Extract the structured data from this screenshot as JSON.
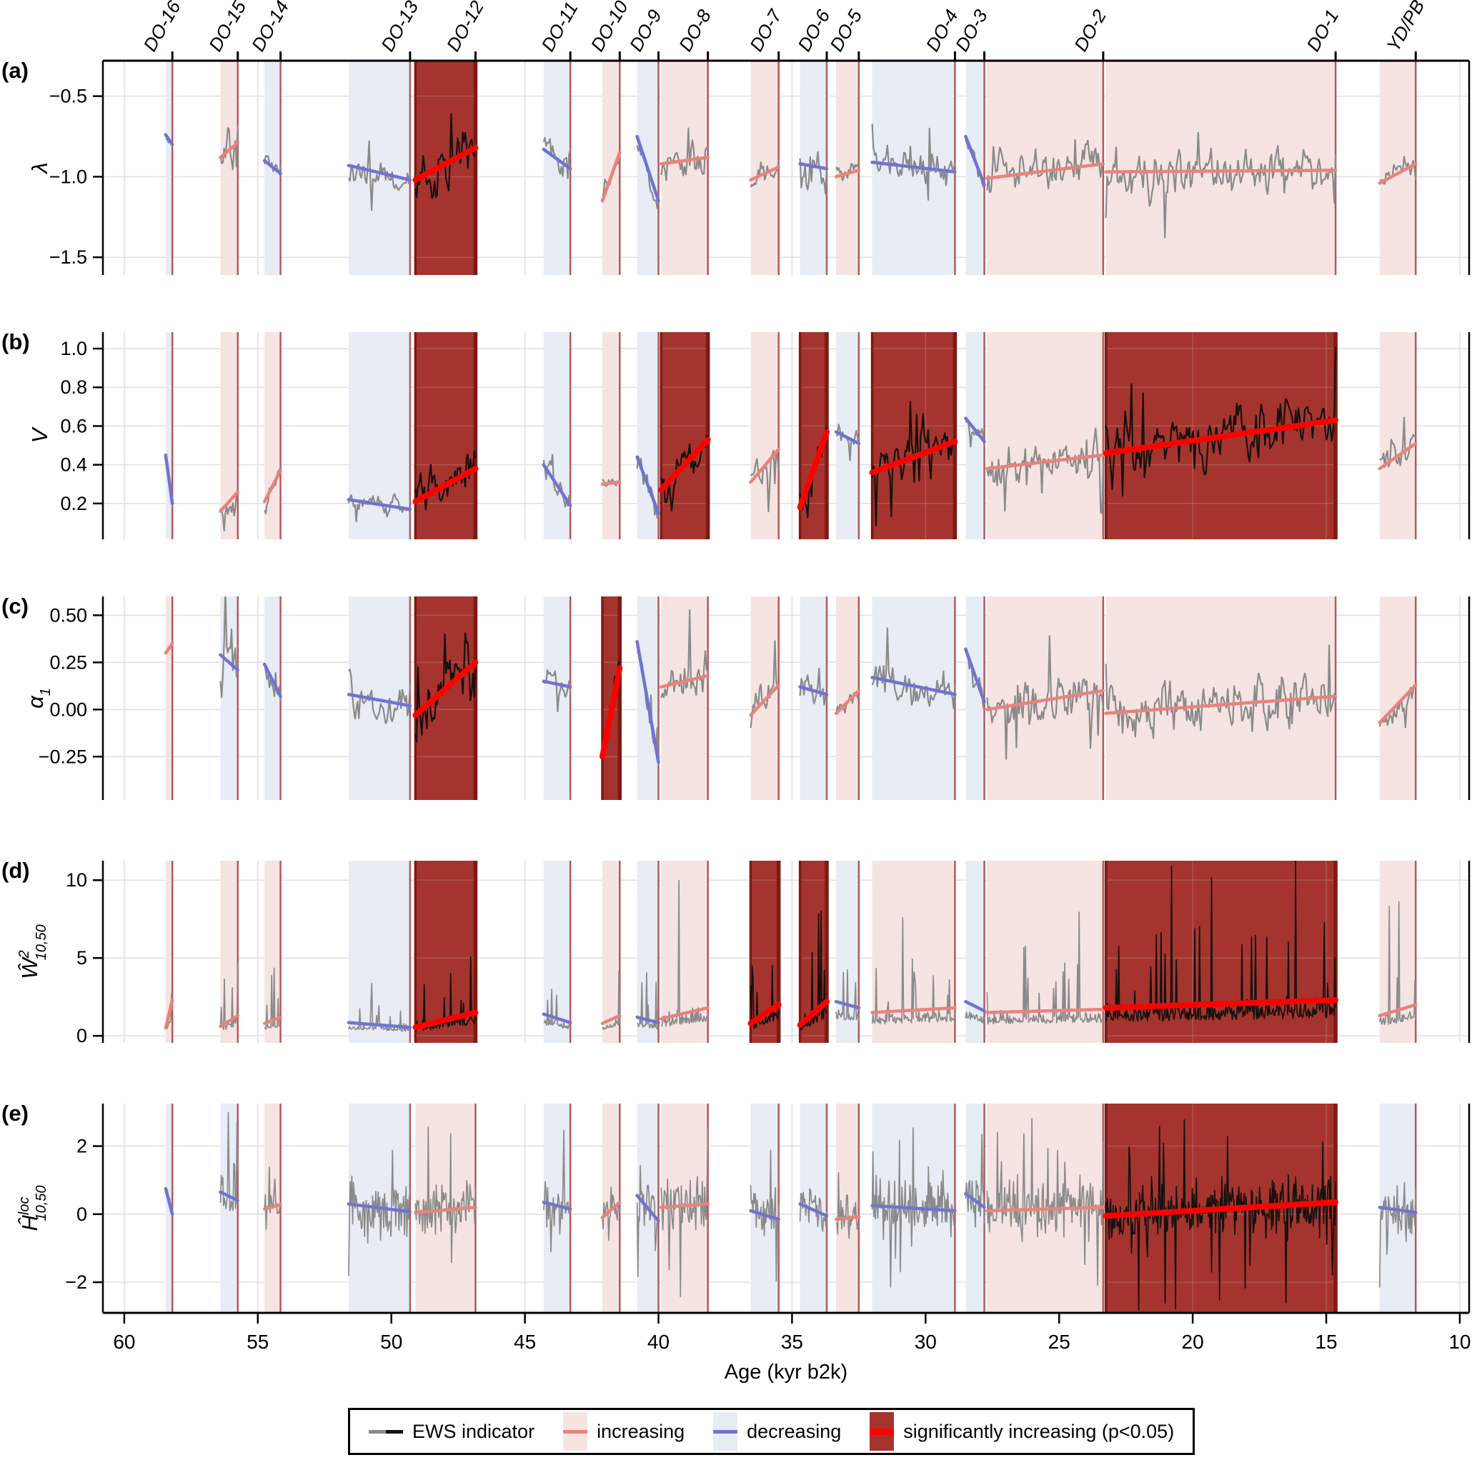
{
  "chart_data": {
    "type": "line",
    "title": "",
    "xlabel": "Age (kyr b2k)",
    "x_range": [
      60.8,
      9.65
    ],
    "x_ticks": [
      60,
      55,
      50,
      45,
      40,
      35,
      30,
      25,
      20,
      15,
      10
    ],
    "x_tick_labels": [
      "60",
      "55",
      "50",
      "45",
      "40",
      "35",
      "30",
      "25",
      "20",
      "15",
      "10"
    ],
    "seed": 20,
    "legend_items": [
      {
        "label": "EWS indicator",
        "type": "series"
      },
      {
        "label": "increasing",
        "type": "increasing"
      },
      {
        "label": "decreasing",
        "type": "decreasing"
      },
      {
        "label": "significantly increasing (p<0.05)",
        "type": "significant"
      }
    ],
    "colors": {
      "series_gray": "#8a8a8a",
      "series_dark": "#16100d",
      "band": {
        "increasing": "#f5e4e2",
        "decreasing": "#e7ecf5",
        "significant": "#a5342e"
      },
      "trend": {
        "increasing": "#e8837c",
        "decreasing": "#7173d1",
        "significant": "#fb0200"
      },
      "edge_light": "#b4595b",
      "edge_dark": "#7c1a14",
      "grid": "#e0e0e0",
      "axis": "#000000"
    },
    "events": [
      {
        "name": "DO-16",
        "window_start": 58.45,
        "onset": 58.2
      },
      {
        "name": "DO-15",
        "window_start": 56.4,
        "onset": 55.75
      },
      {
        "name": "DO-14",
        "window_start": 54.75,
        "onset": 54.15
      },
      {
        "name": "DO-13",
        "window_start": 51.6,
        "onset": 49.3
      },
      {
        "name": "DO-12",
        "window_start": 49.1,
        "onset": 46.85
      },
      {
        "name": "DO-11",
        "window_start": 44.3,
        "onset": 43.3
      },
      {
        "name": "DO-10",
        "window_start": 42.1,
        "onset": 41.45
      },
      {
        "name": "DO-9",
        "window_start": 40.8,
        "onset": 40.0
      },
      {
        "name": "DO-8",
        "window_start": 39.9,
        "onset": 38.15
      },
      {
        "name": "DO-7",
        "window_start": 36.55,
        "onset": 35.5
      },
      {
        "name": "DO-6",
        "window_start": 34.7,
        "onset": 33.7
      },
      {
        "name": "DO-5",
        "window_start": 33.35,
        "onset": 32.5
      },
      {
        "name": "DO-4",
        "window_start": 32.0,
        "onset": 28.9
      },
      {
        "name": "DO-3",
        "window_start": 28.5,
        "onset": 27.8
      },
      {
        "name": "DO-2",
        "window_start": 27.7,
        "onset": 23.35
      },
      {
        "name": "DO-1",
        "window_start": 23.25,
        "onset": 14.65
      },
      {
        "name": "YD/PB",
        "window_start": 13.0,
        "onset": 11.65
      }
    ],
    "panels": [
      {
        "key": "a",
        "panel_label": "(a)",
        "ylabel": {
          "main": "λ",
          "sup": "",
          "sub": ""
        },
        "yticks": [
          -0.5,
          -1.0,
          -1.5
        ],
        "ytick_labels": [
          "−0.5",
          "−1.0",
          "−1.5"
        ],
        "yrange": [
          -1.61,
          -0.28
        ],
        "noise": "smooth",
        "segments": [
          {
            "event": "DO-16",
            "trend": "decreasing",
            "v0": -0.74,
            "v1": -0.8,
            "amp": 0.02
          },
          {
            "event": "DO-15",
            "trend": "increasing",
            "v0": -0.88,
            "v1": -0.79,
            "amp": 0.1
          },
          {
            "event": "DO-14",
            "trend": "decreasing",
            "v0": -0.9,
            "v1": -0.98,
            "amp": 0.04
          },
          {
            "event": "DO-13",
            "trend": "decreasing",
            "v0": -0.93,
            "v1": -1.02,
            "amp": 0.08
          },
          {
            "event": "DO-12",
            "trend": "significant",
            "v0": -1.02,
            "v1": -0.82,
            "amp": 0.12
          },
          {
            "event": "DO-11",
            "trend": "decreasing",
            "v0": -0.83,
            "v1": -0.95,
            "amp": 0.06
          },
          {
            "event": "DO-10",
            "trend": "increasing",
            "v0": -1.15,
            "v1": -0.85,
            "amp": 0.05
          },
          {
            "event": "DO-9",
            "trend": "decreasing",
            "v0": -0.75,
            "v1": -1.15,
            "amp": 0.05
          },
          {
            "event": "DO-8",
            "trend": "increasing",
            "v0": -0.92,
            "v1": -0.88,
            "amp": 0.09
          },
          {
            "event": "DO-7",
            "trend": "increasing",
            "v0": -1.02,
            "v1": -0.94,
            "amp": 0.06
          },
          {
            "event": "DO-6",
            "trend": "decreasing",
            "v0": -0.92,
            "v1": -0.95,
            "amp": 0.13
          },
          {
            "event": "DO-5",
            "trend": "increasing",
            "v0": -1.0,
            "v1": -0.96,
            "amp": 0.05
          },
          {
            "event": "DO-4",
            "trend": "decreasing",
            "v0": -0.91,
            "v1": -0.97,
            "amp": 0.08
          },
          {
            "event": "DO-3",
            "trend": "decreasing",
            "v0": -0.75,
            "v1": -1.05,
            "amp": 0.06
          },
          {
            "event": "DO-2",
            "trend": "increasing",
            "v0": -1.01,
            "v1": -0.92,
            "amp": 0.1
          },
          {
            "event": "DO-1",
            "trend": "increasing",
            "v0": -0.97,
            "v1": -0.96,
            "amp": 0.12
          },
          {
            "event": "YD/PB",
            "trend": "increasing",
            "v0": -1.04,
            "v1": -0.92,
            "amp": 0.06
          }
        ]
      },
      {
        "key": "b",
        "panel_label": "(b)",
        "ylabel": {
          "main": "V",
          "sup": "",
          "sub": ""
        },
        "yticks": [
          1.0,
          0.8,
          0.6,
          0.4,
          0.2
        ],
        "ytick_labels": [
          "1.0",
          "0.8",
          "0.6",
          "0.4",
          "0.2"
        ],
        "yrange": [
          0.015,
          1.085
        ],
        "noise": "smooth",
        "segments": [
          {
            "event": "DO-16",
            "trend": "decreasing",
            "v0": 0.45,
            "v1": 0.2,
            "amp": 0.03
          },
          {
            "event": "DO-15",
            "trend": "increasing",
            "v0": 0.16,
            "v1": 0.26,
            "amp": 0.08
          },
          {
            "event": "DO-14",
            "trend": "increasing",
            "v0": 0.21,
            "v1": 0.37,
            "amp": 0.05
          },
          {
            "event": "DO-13",
            "trend": "decreasing",
            "v0": 0.22,
            "v1": 0.17,
            "amp": 0.04
          },
          {
            "event": "DO-12",
            "trend": "significant",
            "v0": 0.21,
            "v1": 0.38,
            "amp": 0.09
          },
          {
            "event": "DO-11",
            "trend": "decreasing",
            "v0": 0.4,
            "v1": 0.19,
            "amp": 0.06
          },
          {
            "event": "DO-10",
            "trend": "increasing",
            "v0": 0.3,
            "v1": 0.31,
            "amp": 0.02
          },
          {
            "event": "DO-9",
            "trend": "decreasing",
            "v0": 0.44,
            "v1": 0.15,
            "amp": 0.06
          },
          {
            "event": "DO-8",
            "trend": "significant",
            "v0": 0.27,
            "v1": 0.53,
            "amp": 0.09
          },
          {
            "event": "DO-7",
            "trend": "increasing",
            "v0": 0.31,
            "v1": 0.48,
            "amp": 0.07
          },
          {
            "event": "DO-6",
            "trend": "significant",
            "v0": 0.18,
            "v1": 0.57,
            "amp": 0.1
          },
          {
            "event": "DO-5",
            "trend": "decreasing",
            "v0": 0.57,
            "v1": 0.51,
            "amp": 0.05
          },
          {
            "event": "DO-4",
            "trend": "significant",
            "v0": 0.36,
            "v1": 0.52,
            "amp": 0.1
          },
          {
            "event": "DO-3",
            "trend": "decreasing",
            "v0": 0.64,
            "v1": 0.52,
            "amp": 0.04
          },
          {
            "event": "DO-2",
            "trend": "increasing",
            "v0": 0.38,
            "v1": 0.45,
            "amp": 0.08
          },
          {
            "event": "DO-1",
            "trend": "significant",
            "v0": 0.46,
            "v1": 0.63,
            "amp": 0.12
          },
          {
            "event": "YD/PB",
            "trend": "increasing",
            "v0": 0.38,
            "v1": 0.51,
            "amp": 0.08
          }
        ]
      },
      {
        "key": "c",
        "panel_label": "(c)",
        "ylabel": {
          "main": "α",
          "sup": "",
          "sub": "1"
        },
        "yticks": [
          0.5,
          0.25,
          0.0,
          -0.25
        ],
        "ytick_labels": [
          "0.50",
          "0.25",
          "0.00",
          "−0.25"
        ],
        "yrange": [
          -0.48,
          0.6
        ],
        "noise": "smooth",
        "segments": [
          {
            "event": "DO-16",
            "trend": "increasing",
            "v0": 0.3,
            "v1": 0.35,
            "amp": 0.02
          },
          {
            "event": "DO-15",
            "trend": "decreasing",
            "v0": 0.29,
            "v1": 0.21,
            "amp": 0.15
          },
          {
            "event": "DO-14",
            "trend": "decreasing",
            "v0": 0.24,
            "v1": 0.07,
            "amp": 0.07
          },
          {
            "event": "DO-13",
            "trend": "decreasing",
            "v0": 0.08,
            "v1": 0.02,
            "amp": 0.09
          },
          {
            "event": "DO-12",
            "trend": "significant",
            "v0": -0.03,
            "v1": 0.25,
            "amp": 0.14
          },
          {
            "event": "DO-11",
            "trend": "decreasing",
            "v0": 0.15,
            "v1": 0.12,
            "amp": 0.06
          },
          {
            "event": "DO-10",
            "trend": "significant",
            "v0": -0.25,
            "v1": 0.22,
            "amp": 0.05
          },
          {
            "event": "DO-9",
            "trend": "decreasing",
            "v0": 0.36,
            "v1": -0.28,
            "amp": 0.06
          },
          {
            "event": "DO-8",
            "trend": "increasing",
            "v0": 0.12,
            "v1": 0.18,
            "amp": 0.11
          },
          {
            "event": "DO-7",
            "trend": "increasing",
            "v0": -0.03,
            "v1": 0.13,
            "amp": 0.07
          },
          {
            "event": "DO-6",
            "trend": "decreasing",
            "v0": 0.12,
            "v1": 0.08,
            "amp": 0.07
          },
          {
            "event": "DO-5",
            "trend": "increasing",
            "v0": -0.02,
            "v1": 0.1,
            "amp": 0.06
          },
          {
            "event": "DO-4",
            "trend": "decreasing",
            "v0": 0.17,
            "v1": 0.08,
            "amp": 0.09
          },
          {
            "event": "DO-3",
            "trend": "decreasing",
            "v0": 0.32,
            "v1": 0.04,
            "amp": 0.07
          },
          {
            "event": "DO-2",
            "trend": "increasing",
            "v0": 0.0,
            "v1": 0.1,
            "amp": 0.12
          },
          {
            "event": "DO-1",
            "trend": "increasing",
            "v0": -0.02,
            "v1": 0.07,
            "amp": 0.12
          },
          {
            "event": "YD/PB",
            "trend": "increasing",
            "v0": -0.07,
            "v1": 0.13,
            "amp": 0.06
          }
        ]
      },
      {
        "key": "d",
        "panel_label": "(d)",
        "ylabel": {
          "main": "Ŵ",
          "sup": "2",
          "sub": "10,50"
        },
        "yticks": [
          10,
          5,
          0
        ],
        "ytick_labels": [
          "10",
          "5",
          "0"
        ],
        "yrange": [
          -0.45,
          11.25
        ],
        "noise": "spiky",
        "segments": [
          {
            "event": "DO-16",
            "trend": "increasing",
            "v0": 0.5,
            "v1": 2.3,
            "amp": 0.7
          },
          {
            "event": "DO-15",
            "trend": "increasing",
            "v0": 0.6,
            "v1": 1.3,
            "amp": 0.9
          },
          {
            "event": "DO-14",
            "trend": "increasing",
            "v0": 0.8,
            "v1": 1.2,
            "amp": 0.5
          },
          {
            "event": "DO-13",
            "trend": "decreasing",
            "v0": 0.85,
            "v1": 0.55,
            "amp": 0.4
          },
          {
            "event": "DO-12",
            "trend": "significant",
            "v0": 0.55,
            "v1": 1.5,
            "amp": 0.9
          },
          {
            "event": "DO-11",
            "trend": "decreasing",
            "v0": 1.4,
            "v1": 0.85,
            "amp": 0.7
          },
          {
            "event": "DO-10",
            "trend": "increasing",
            "v0": 0.8,
            "v1": 1.3,
            "amp": 0.5
          },
          {
            "event": "DO-9",
            "trend": "decreasing",
            "v0": 1.2,
            "v1": 0.85,
            "amp": 0.8
          },
          {
            "event": "DO-8",
            "trend": "increasing",
            "v0": 1.1,
            "v1": 1.8,
            "amp": 1.3
          },
          {
            "event": "DO-7",
            "trend": "significant",
            "v0": 0.8,
            "v1": 2.0,
            "amp": 1.0
          },
          {
            "event": "DO-6",
            "trend": "significant",
            "v0": 0.7,
            "v1": 2.2,
            "amp": 1.1
          },
          {
            "event": "DO-5",
            "trend": "decreasing",
            "v0": 2.2,
            "v1": 1.8,
            "amp": 1.2
          },
          {
            "event": "DO-4",
            "trend": "increasing",
            "v0": 1.5,
            "v1": 1.8,
            "amp": 1.1
          },
          {
            "event": "DO-3",
            "trend": "decreasing",
            "v0": 2.2,
            "v1": 1.6,
            "amp": 0.8
          },
          {
            "event": "DO-2",
            "trend": "increasing",
            "v0": 1.5,
            "v1": 1.7,
            "amp": 1.0
          },
          {
            "event": "DO-1",
            "trend": "significant",
            "v0": 1.8,
            "v1": 2.3,
            "amp": 1.6
          },
          {
            "event": "YD/PB",
            "trend": "increasing",
            "v0": 1.3,
            "v1": 2.0,
            "amp": 1.1
          }
        ]
      },
      {
        "key": "e",
        "panel_label": "(e)",
        "ylabel": {
          "main": "Ĥ",
          "sup": "loc",
          "sub": "10,50"
        },
        "yticks": [
          2,
          0,
          -2
        ],
        "ytick_labels": [
          "2",
          "0",
          "−2"
        ],
        "yrange": [
          -2.9,
          3.25
        ],
        "noise": "noisy",
        "segments": [
          {
            "event": "DO-16",
            "trend": "decreasing",
            "v0": 0.75,
            "v1": 0.0,
            "amp": 0.3
          },
          {
            "event": "DO-15",
            "trend": "decreasing",
            "v0": 0.65,
            "v1": 0.4,
            "amp": 0.9
          },
          {
            "event": "DO-14",
            "trend": "increasing",
            "v0": 0.15,
            "v1": 0.28,
            "amp": 0.5
          },
          {
            "event": "DO-13",
            "trend": "decreasing",
            "v0": 0.3,
            "v1": 0.07,
            "amp": 0.9
          },
          {
            "event": "DO-12",
            "trend": "increasing",
            "v0": 0.05,
            "v1": 0.2,
            "amp": 0.8
          },
          {
            "event": "DO-11",
            "trend": "decreasing",
            "v0": 0.35,
            "v1": 0.15,
            "amp": 0.8
          },
          {
            "event": "DO-10",
            "trend": "increasing",
            "v0": -0.1,
            "v1": 0.35,
            "amp": 0.5
          },
          {
            "event": "DO-9",
            "trend": "decreasing",
            "v0": 0.55,
            "v1": -0.2,
            "amp": 0.8
          },
          {
            "event": "DO-8",
            "trend": "increasing",
            "v0": 0.2,
            "v1": 0.3,
            "amp": 0.9
          },
          {
            "event": "DO-7",
            "trend": "decreasing",
            "v0": 0.1,
            "v1": -0.15,
            "amp": 0.8
          },
          {
            "event": "DO-6",
            "trend": "decreasing",
            "v0": 0.3,
            "v1": -0.05,
            "amp": 0.7
          },
          {
            "event": "DO-5",
            "trend": "increasing",
            "v0": -0.15,
            "v1": -0.08,
            "amp": 0.5
          },
          {
            "event": "DO-4",
            "trend": "decreasing",
            "v0": 0.25,
            "v1": 0.1,
            "amp": 0.9
          },
          {
            "event": "DO-3",
            "trend": "decreasing",
            "v0": 0.6,
            "v1": 0.2,
            "amp": 0.8
          },
          {
            "event": "DO-2",
            "trend": "increasing",
            "v0": 0.1,
            "v1": 0.2,
            "amp": 0.9
          },
          {
            "event": "DO-1",
            "trend": "significant",
            "v0": -0.05,
            "v1": 0.35,
            "amp": 0.9
          },
          {
            "event": "YD/PB",
            "trend": "decreasing",
            "v0": 0.2,
            "v1": 0.05,
            "amp": 0.8
          }
        ]
      }
    ]
  }
}
